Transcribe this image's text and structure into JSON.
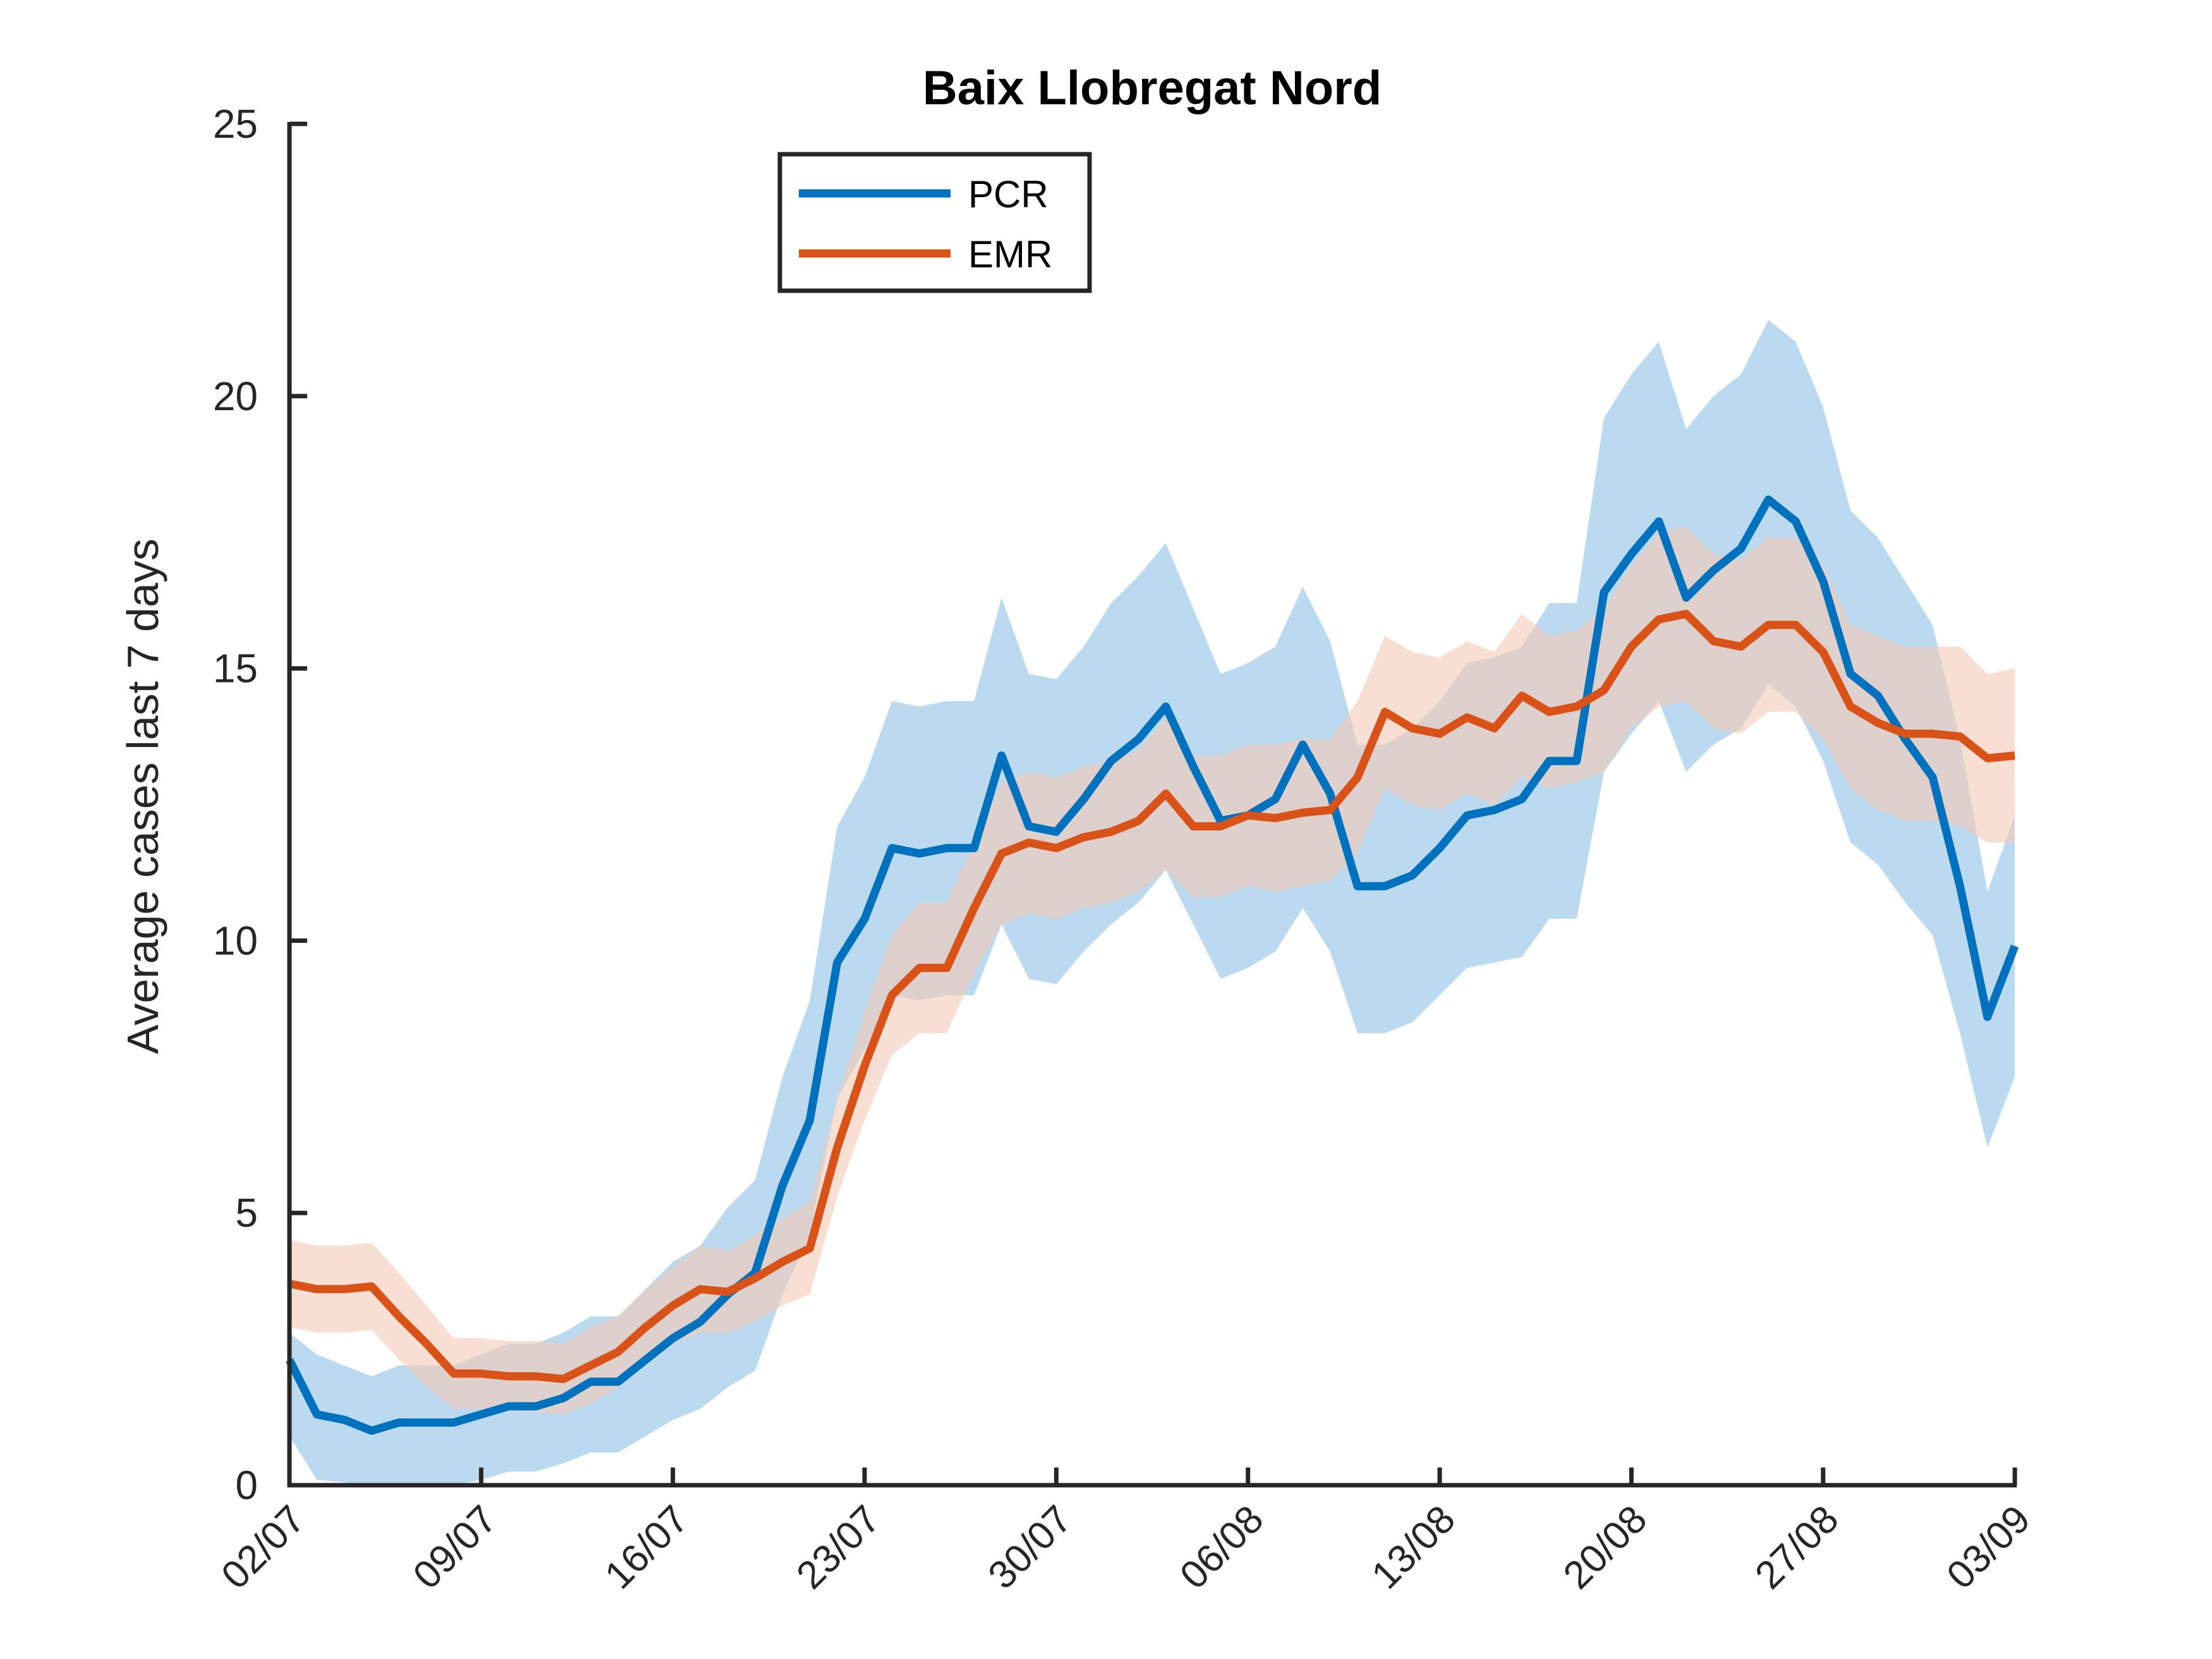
{
  "chart_data": {
    "type": "line",
    "title": "Baix Llobregat Nord",
    "xlabel": "",
    "ylabel": "Average cases last 7 days",
    "ylim": [
      0,
      25
    ],
    "yticks": [
      0,
      5,
      10,
      15,
      20,
      25
    ],
    "xlim": [
      "02/07",
      "03/09"
    ],
    "xtick_labels": [
      "02/07",
      "09/07",
      "16/07",
      "23/07",
      "30/07",
      "06/08",
      "13/08",
      "20/08",
      "27/08",
      "03/09"
    ],
    "x": [
      "02/07",
      "03/07",
      "04/07",
      "05/07",
      "06/07",
      "07/07",
      "08/07",
      "09/07",
      "10/07",
      "11/07",
      "12/07",
      "13/07",
      "14/07",
      "15/07",
      "16/07",
      "17/07",
      "18/07",
      "19/07",
      "20/07",
      "21/07",
      "22/07",
      "23/07",
      "24/07",
      "25/07",
      "26/07",
      "27/07",
      "28/07",
      "29/07",
      "30/07",
      "31/07",
      "01/08",
      "02/08",
      "03/08",
      "04/08",
      "05/08",
      "06/08",
      "07/08",
      "08/08",
      "09/08",
      "10/08",
      "11/08",
      "12/08",
      "13/08",
      "14/08",
      "15/08",
      "16/08",
      "17/08",
      "18/08",
      "19/08",
      "20/08",
      "21/08",
      "22/08",
      "23/08",
      "24/08",
      "25/08",
      "26/08",
      "27/08",
      "28/08",
      "29/08",
      "30/08",
      "31/08",
      "01/09",
      "02/09",
      "03/09"
    ],
    "grid": false,
    "legend_position": "top-left",
    "series": [
      {
        "name": "PCR",
        "color": "#0072BD",
        "band_color": "#A6CEE9",
        "values": [
          2.3,
          1.3,
          1.2,
          1.0,
          1.15,
          1.15,
          1.15,
          1.3,
          1.45,
          1.45,
          1.6,
          1.9,
          1.9,
          2.3,
          2.7,
          3.0,
          3.5,
          3.9,
          5.5,
          6.7,
          9.6,
          10.4,
          11.7,
          11.6,
          11.7,
          11.7,
          13.4,
          12.1,
          12.0,
          12.6,
          13.3,
          13.7,
          14.3,
          13.2,
          12.2,
          12.3,
          12.6,
          13.6,
          12.7,
          11.0,
          11.0,
          11.2,
          11.7,
          12.3,
          12.4,
          12.6,
          13.3,
          13.3,
          16.4,
          17.1,
          17.7,
          16.3,
          16.8,
          17.2,
          18.1,
          17.7,
          16.6,
          14.9,
          14.5,
          13.7,
          13.0,
          11.0,
          8.6,
          9.9
        ],
        "lower": [
          0.9,
          0.1,
          0.05,
          0.0,
          0.0,
          0.0,
          0.0,
          0.1,
          0.25,
          0.25,
          0.4,
          0.6,
          0.6,
          0.9,
          1.2,
          1.4,
          1.8,
          2.1,
          3.5,
          4.6,
          7.1,
          8.0,
          9.0,
          8.9,
          9.0,
          9.0,
          10.3,
          9.3,
          9.2,
          9.8,
          10.3,
          10.7,
          11.3,
          10.3,
          9.3,
          9.5,
          9.8,
          10.6,
          9.8,
          8.3,
          8.3,
          8.5,
          9.0,
          9.5,
          9.6,
          9.7,
          10.4,
          10.4,
          13.1,
          13.8,
          14.4,
          13.1,
          13.6,
          13.9,
          14.7,
          14.3,
          13.3,
          11.8,
          11.4,
          10.7,
          10.1,
          8.3,
          6.2,
          7.5
        ],
        "upper": [
          2.8,
          2.4,
          2.2,
          2.0,
          2.2,
          2.2,
          2.2,
          2.4,
          2.6,
          2.6,
          2.8,
          3.1,
          3.1,
          3.6,
          4.1,
          4.4,
          5.1,
          5.6,
          7.5,
          8.9,
          12.1,
          13.0,
          14.4,
          14.3,
          14.4,
          14.4,
          16.3,
          14.9,
          14.8,
          15.4,
          16.2,
          16.7,
          17.3,
          16.1,
          14.9,
          15.1,
          15.4,
          16.5,
          15.5,
          13.6,
          13.6,
          13.9,
          14.4,
          15.1,
          15.2,
          15.4,
          16.2,
          16.2,
          19.6,
          20.4,
          21.0,
          19.4,
          20.0,
          20.4,
          21.4,
          21.0,
          19.8,
          17.9,
          17.4,
          16.6,
          15.8,
          13.7,
          10.9,
          12.3
        ]
      },
      {
        "name": "EMR",
        "color": "#D95319",
        "band_color": "#F3C9B6",
        "values": [
          3.7,
          3.6,
          3.6,
          3.65,
          3.1,
          2.6,
          2.05,
          2.05,
          2.0,
          2.0,
          1.95,
          2.2,
          2.45,
          2.9,
          3.3,
          3.6,
          3.55,
          3.8,
          4.1,
          4.35,
          6.2,
          7.7,
          9.0,
          9.5,
          9.5,
          10.6,
          11.6,
          11.8,
          11.7,
          11.9,
          12.0,
          12.2,
          12.7,
          12.1,
          12.1,
          12.3,
          12.25,
          12.35,
          12.4,
          13.0,
          14.2,
          13.9,
          13.8,
          14.1,
          13.9,
          14.5,
          14.2,
          14.3,
          14.6,
          15.4,
          15.9,
          16.0,
          15.5,
          15.4,
          15.8,
          15.8,
          15.3,
          14.3,
          14.0,
          13.8,
          13.8,
          13.75,
          13.35,
          13.4
        ],
        "lower": [
          2.9,
          2.8,
          2.8,
          2.85,
          2.3,
          1.8,
          1.4,
          1.4,
          1.35,
          1.35,
          1.3,
          1.5,
          1.8,
          2.2,
          2.6,
          2.8,
          2.8,
          3.0,
          3.3,
          3.5,
          5.3,
          6.7,
          7.9,
          8.3,
          8.3,
          9.4,
          10.3,
          10.5,
          10.4,
          10.6,
          10.7,
          10.9,
          11.3,
          10.8,
          10.8,
          11.0,
          10.9,
          11.0,
          11.1,
          11.6,
          12.8,
          12.5,
          12.4,
          12.7,
          12.5,
          13.0,
          12.8,
          12.9,
          13.1,
          13.9,
          14.3,
          14.4,
          13.9,
          13.8,
          14.2,
          14.2,
          13.7,
          12.8,
          12.4,
          12.2,
          12.2,
          12.1,
          11.8,
          11.8
        ],
        "upper": [
          4.5,
          4.4,
          4.4,
          4.45,
          3.9,
          3.3,
          2.7,
          2.7,
          2.65,
          2.65,
          2.6,
          2.9,
          3.1,
          3.6,
          4.0,
          4.4,
          4.3,
          4.6,
          4.9,
          5.2,
          7.1,
          8.7,
          10.1,
          10.7,
          10.7,
          11.8,
          12.9,
          13.1,
          13.0,
          13.2,
          13.3,
          13.5,
          14.1,
          13.4,
          13.4,
          13.6,
          13.6,
          13.7,
          13.7,
          14.4,
          15.6,
          15.3,
          15.2,
          15.5,
          15.3,
          16.0,
          15.6,
          15.7,
          16.1,
          16.9,
          17.5,
          17.6,
          17.1,
          17.0,
          17.4,
          17.4,
          16.9,
          15.8,
          15.6,
          15.4,
          15.4,
          15.4,
          14.9,
          15.0
        ]
      }
    ]
  }
}
